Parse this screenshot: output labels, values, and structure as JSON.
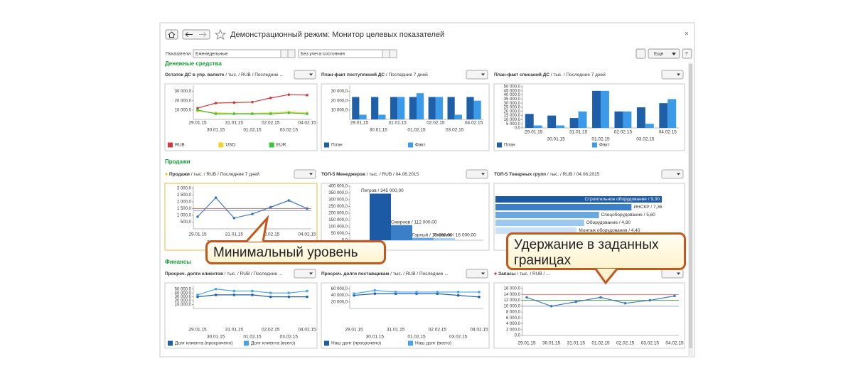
{
  "header": {
    "title": "Демонстрационный режим: Монитор целевых показателей"
  },
  "filters": {
    "label": "Показатели:",
    "period": "Еженедельные",
    "state": "Без учета состояния",
    "more": "Еще"
  },
  "sections": [
    {
      "title": "Денежные средства",
      "panels": [
        {
          "title": "Остаток ДС в упр. валюте",
          "subtitle": "/ тыс. / RUB / Последние ...",
          "chart": {
            "type": "line",
            "categories": [
              "29.01.15",
              "30.01.15",
              "31.01.15",
              "01.02.15",
              "02.02.15",
              "03.02.15",
              "04.02.15"
            ],
            "ylim": [
              0,
              35000
            ],
            "yticks": [
              {
                "value": 10000,
                "label": "10 000,0"
              },
              {
                "value": 20000,
                "label": "20 000,0"
              },
              {
                "value": 30000,
                "label": "30 000,0"
              }
            ],
            "series": [
              {
                "name": "RUB",
                "color": "#d03a3a",
                "values": [
                  12000,
                  17500,
                  18000,
                  18500,
                  23000,
                  26500,
                  26000
                ]
              },
              {
                "name": "USD",
                "color": "#f2d22e",
                "values": [
                  9000,
                  7000,
                  6500,
                  6500,
                  7000,
                  8000,
                  7000
                ]
              },
              {
                "name": "EUR",
                "color": "#3cc43c",
                "values": [
                  10000,
                  6000,
                  6000,
                  6000,
                  6000,
                  7000,
                  6000
                ]
              }
            ]
          }
        },
        {
          "title": "План-факт поступлений ДС",
          "subtitle": "/ Последние 7 дней",
          "chart": {
            "type": "bar",
            "categories": [
              "29.01.15",
              "30.01.15",
              "31.01.15",
              "01.02.15",
              "02.02.15",
              "03.02.15",
              "04.02.15"
            ],
            "ylim": [
              0,
              35000
            ],
            "yticks": [
              {
                "value": 10000,
                "label": "10 000,0"
              },
              {
                "value": 20000,
                "label": "20 000,0"
              },
              {
                "value": 30000,
                "label": "30 000,0"
              }
            ],
            "series": [
              {
                "name": "План",
                "color": "#1f5fa8",
                "values": [
                  24000,
                  24000,
                  24000,
                  24000,
                  24000,
                  24000,
                  24000
                ]
              },
              {
                "name": "Факт",
                "color": "#3b9be8",
                "values": [
                  5000,
                  5000,
                  24000,
                  28000,
                  24000,
                  5000,
                  20000
                ]
              }
            ]
          }
        },
        {
          "title": "План-факт списаний ДС",
          "subtitle": "/ тыс. / Последние 7 дней",
          "chart": {
            "type": "bar",
            "categories": [
              "29.01.15",
              "30.01.15",
              "31.01.15",
              "01.02.15",
              "02.02.15",
              "03.02.15",
              "04.02.15"
            ],
            "ylim": [
              0,
              50000
            ],
            "yticks": [
              {
                "value": 0,
                "label": "0,0"
              },
              {
                "value": 5000,
                "label": "5 000,0"
              },
              {
                "value": 10000,
                "label": "10 000,0"
              },
              {
                "value": 15000,
                "label": "15 000,0"
              },
              {
                "value": 20000,
                "label": "20 000,0"
              },
              {
                "value": 25000,
                "label": "25 000,0"
              },
              {
                "value": 30000,
                "label": "30 000,0"
              },
              {
                "value": 35000,
                "label": "35 000,0"
              },
              {
                "value": 40000,
                "label": "40 000,0"
              },
              {
                "value": 45000,
                "label": "45 000,0"
              },
              {
                "value": 50000,
                "label": "50 000,0"
              }
            ],
            "series": [
              {
                "name": "План",
                "color": "#1f5fa8",
                "values": [
                  17000,
                  15000,
                  12000,
                  45000,
                  20000,
                  25000,
                  30000
                ]
              },
              {
                "name": "Факт",
                "color": "#3b9be8",
                "values": [
                  3000,
                  3000,
                  20000,
                  45000,
                  20000,
                  5000,
                  35000
                ]
              }
            ]
          }
        }
      ]
    },
    {
      "title": "Продажи",
      "panels": [
        {
          "title": "Продажи",
          "subtitle": "/ тыс. / RUB / Последние 7 дней",
          "chart": {
            "type": "line",
            "categories": [
              "29.01.15",
              "30.01.15",
              "31.01.15",
              "01.02.15",
              "02.02.15",
              "03.02.15",
              "04.02.15"
            ],
            "ylim": [
              0,
              3100
            ],
            "yticks": [
              {
                "value": 500,
                "label": "500,0"
              },
              {
                "value": 1000,
                "label": "1 000,0"
              },
              {
                "value": 1500,
                "label": "1 500,0"
              },
              {
                "value": 2000,
                "label": "2 000,0"
              },
              {
                "value": 2500,
                "label": "2 500,0"
              },
              {
                "value": 3000,
                "label": "3 000,0"
              }
            ],
            "ref_lines": [
              {
                "value": 1500,
                "color": "#e06060"
              },
              {
                "value": 1350,
                "color": "#8090d0"
              }
            ],
            "series": [
              {
                "color": "#3d79b8",
                "values": [
                  900,
                  2300,
                  800,
                  1100,
                  1600,
                  2100,
                  1500
                ]
              }
            ]
          }
        },
        {
          "title": "ТОП-5 Менеджеров",
          "subtitle": "/ тыс. / RUB / 04.06.2015",
          "chart": {
            "type": "bar",
            "ylim": [
              0,
              400000
            ],
            "yticks": [
              {
                "value": 0,
                "label": "0,0"
              },
              {
                "value": 50000,
                "label": "50 000,0"
              },
              {
                "value": 100000,
                "label": "100 000,0"
              },
              {
                "value": 150000,
                "label": "150 000,0"
              },
              {
                "value": 200000,
                "label": "200 000,0"
              },
              {
                "value": 250000,
                "label": "250 000,0"
              },
              {
                "value": 300000,
                "label": "300 000,0"
              },
              {
                "value": 350000,
                "label": "350 000,0"
              },
              {
                "value": 400000,
                "label": "400 000,0"
              }
            ],
            "values": [
              345000,
              112000,
              18000,
              16000
            ],
            "value_labels": [
              "Петров / 345 000,00",
              "Смирнов / 112 000,00",
              "Гарный / 18 000,00",
              "Яковлев / 16 000,00"
            ],
            "colors": [
              "#1c5aa6",
              "#3a7fc8",
              "#6aa7e0",
              "#a9cff2"
            ]
          }
        },
        {
          "title": "ТОП-5 Товарных групп",
          "subtitle": "/ тыс. / RUB / 04.06.2015",
          "chart": {
            "type": "barh",
            "xlim": [
              0,
              10
            ],
            "values": [
              9.0,
              7.36,
              5.6,
              4.8,
              4.4
            ],
            "value_labels": [
              "Строительное оборудование / 9,00",
              "ИНСКР / 7,36",
              "Спецоборудование / 5,60",
              "Оборудование / 4,80",
              "Монтаж оборудования / 4,40"
            ],
            "colors": [
              "#1c5aa6",
              "#3a7fc8",
              "#6aa7e0",
              "#9cc8ef",
              "#c8e1f7"
            ]
          }
        }
      ]
    },
    {
      "title": "Финансы",
      "panels": [
        {
          "title": "Просроч. долги клиентов",
          "subtitle": "/ тыс. / RUB / Последние ...",
          "chart": {
            "type": "line",
            "categories": [
              "29.01.15",
              "30.01.15",
              "31.01.15",
              "01.02.15",
              "02.02.15",
              "03.02.15",
              "04.02.15"
            ],
            "ylim": [
              0,
              55000
            ],
            "yticks": [
              {
                "value": 10000,
                "label": "10 000,0"
              },
              {
                "value": 20000,
                "label": "20 000,0"
              },
              {
                "value": 30000,
                "label": "30 000,0"
              },
              {
                "value": 40000,
                "label": "40 000,0"
              },
              {
                "value": 50000,
                "label": "50 000,0"
              }
            ],
            "series": [
              {
                "name": "Долг клиента (просрочено)",
                "color": "#1f5fa8",
                "values": [
                  30000,
                  35000,
                  35000,
                  35000,
                  30000,
                  30000,
                  30000
                ]
              },
              {
                "name": "Долг клиента (всего)",
                "color": "#45a4ea",
                "values": [
                  35000,
                  50000,
                  45000,
                  45000,
                  40000,
                  40000,
                  45000
                ]
              }
            ]
          }
        },
        {
          "title": "Просроч. долги поставщикам",
          "subtitle": "/ тыс. / RUB / Последние ...",
          "chart": {
            "type": "line",
            "categories": [
              "29.01.15",
              "30.01.15",
              "31.01.15",
              "01.02.15",
              "02.02.15",
              "03.02.15",
              "04.02.15"
            ],
            "ylim": [
              0,
              65000
            ],
            "yticks": [
              {
                "value": 20000,
                "label": "20 000,0"
              },
              {
                "value": 40000,
                "label": "40 000,0"
              },
              {
                "value": 60000,
                "label": "60 000,0"
              }
            ],
            "series": [
              {
                "name": "Наш долг (просрочено)",
                "color": "#1f5fa8",
                "values": [
                  40000,
                  45000,
                  45000,
                  45000,
                  45000,
                  40000,
                  35000
                ]
              },
              {
                "name": "Наш долг (всего)",
                "color": "#45a4ea",
                "values": [
                  45000,
                  55000,
                  50000,
                  50000,
                  50000,
                  50000,
                  50000
                ]
              }
            ]
          }
        },
        {
          "title": "Запасы",
          "subtitle": "/ тыс. / RUB / ...",
          "chart": {
            "type": "line",
            "categories": [
              "29.01.15",
              "30.01.15",
              "31.01.15",
              "01.02.15",
              "02.02.15",
              "03.02.15",
              "04.02.15"
            ],
            "ylim": [
              0,
              16500
            ],
            "yticks": [
              {
                "value": 0,
                "label": "0,0"
              },
              {
                "value": 2000,
                "label": "2 000,0"
              },
              {
                "value": 4000,
                "label": "4 000,0"
              },
              {
                "value": 6000,
                "label": "6 000,0"
              },
              {
                "value": 8000,
                "label": "8 000,0"
              },
              {
                "value": 10000,
                "label": "10 000,0"
              },
              {
                "value": 12000,
                "label": "12 000,0"
              },
              {
                "value": 14000,
                "label": "14 000,0"
              },
              {
                "value": 16000,
                "label": "16 000,0"
              }
            ],
            "ref_lines": [
              {
                "value": 14000,
                "color": "#e06060"
              },
              {
                "value": 12000,
                "color": "#3cae3c"
              },
              {
                "value": 10000,
                "color": "#8090d0"
              }
            ],
            "series": [
              {
                "color": "#3d79b8",
                "values": [
                  13000,
                  10000,
                  11500,
                  13000,
                  11000,
                  12000,
                  13500
                ]
              }
            ]
          }
        }
      ]
    }
  ],
  "callouts": [
    "Минимальный уровень",
    "Удержание в заданных границах"
  ]
}
